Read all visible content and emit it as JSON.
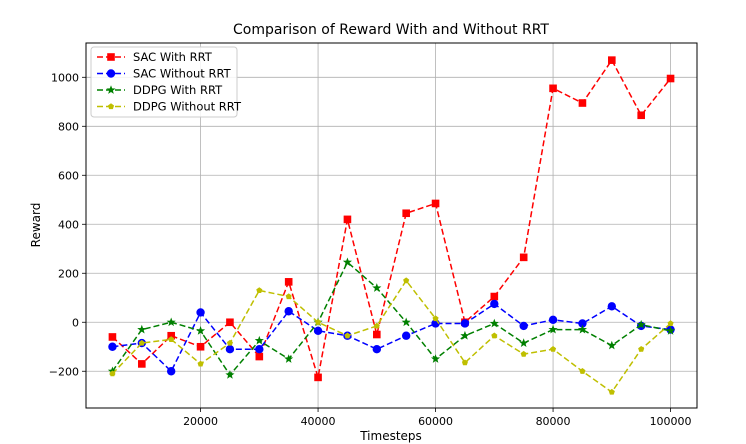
{
  "chart_data": {
    "type": "line",
    "title": "Comparison of Reward With and Without RRT",
    "xlabel": "Timesteps",
    "ylabel": "Reward",
    "xlim": [
      500,
      104500
    ],
    "ylim": [
      -350,
      1140
    ],
    "xticks": [
      20000,
      40000,
      60000,
      80000,
      100000
    ],
    "yticks": [
      -200,
      0,
      200,
      400,
      600,
      800,
      1000
    ],
    "grid": true,
    "legend_position": "top-left",
    "x": [
      5000,
      10000,
      15000,
      20000,
      25000,
      30000,
      35000,
      40000,
      45000,
      50000,
      55000,
      60000,
      65000,
      70000,
      75000,
      80000,
      85000,
      90000,
      95000,
      100000
    ],
    "series": [
      {
        "name": "SAC With RRT",
        "color": "#ff0000",
        "marker": "square",
        "values": [
          -60,
          -170,
          -55,
          -100,
          0,
          -140,
          165,
          -225,
          420,
          -50,
          445,
          485,
          0,
          105,
          265,
          955,
          895,
          1070,
          845,
          995
        ]
      },
      {
        "name": "SAC Without RRT",
        "color": "#0000ff",
        "marker": "circle",
        "values": [
          -100,
          -85,
          -200,
          40,
          -110,
          -110,
          45,
          -35,
          -55,
          -110,
          -55,
          -5,
          -5,
          75,
          -15,
          10,
          -5,
          65,
          -15,
          -30
        ]
      },
      {
        "name": "DDPG With RRT",
        "color": "#008000",
        "marker": "star",
        "values": [
          -200,
          -30,
          0,
          -35,
          -215,
          -75,
          -150,
          0,
          245,
          140,
          0,
          -150,
          -55,
          -5,
          -85,
          -30,
          -30,
          -95,
          -10,
          -35
        ]
      },
      {
        "name": "DDPG Without RRT",
        "color": "#bfbf00",
        "marker": "pentagon",
        "values": [
          -210,
          -85,
          -70,
          -170,
          -85,
          130,
          105,
          0,
          -55,
          -15,
          170,
          15,
          -165,
          -55,
          -130,
          -110,
          -200,
          -285,
          -110,
          -5
        ]
      }
    ]
  }
}
